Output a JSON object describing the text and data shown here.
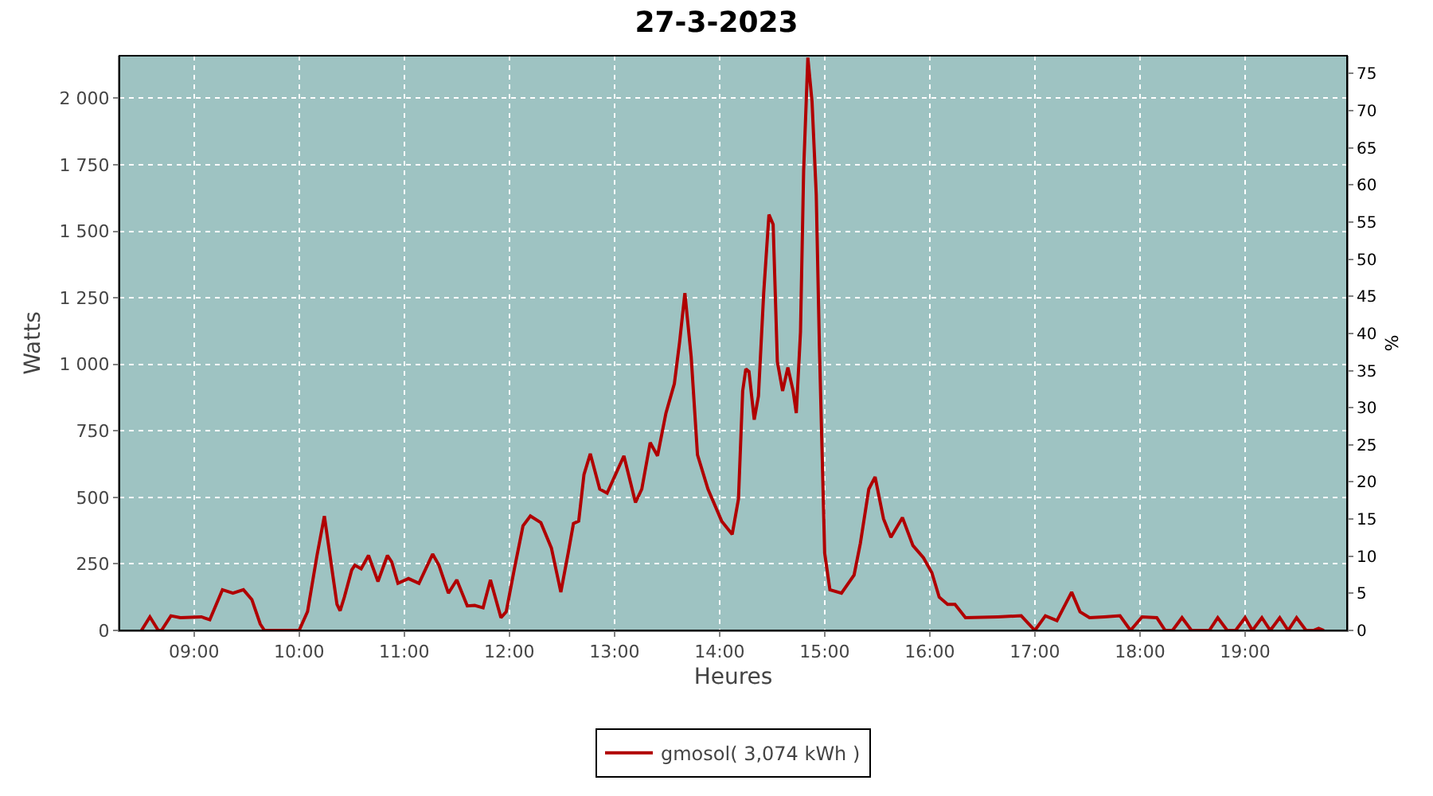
{
  "chart_data": {
    "type": "line",
    "title": "27-3-2023",
    "xlabel": "Heures",
    "ylabel": "Watts",
    "y2label": "%",
    "xlim": [
      8.29,
      19.97
    ],
    "xticks": [
      {
        "value": 9,
        "label": "09:00"
      },
      {
        "value": 10,
        "label": "10:00"
      },
      {
        "value": 11,
        "label": "11:00"
      },
      {
        "value": 12,
        "label": "12:00"
      },
      {
        "value": 13,
        "label": "13:00"
      },
      {
        "value": 14,
        "label": "14:00"
      },
      {
        "value": 15,
        "label": "15:00"
      },
      {
        "value": 16,
        "label": "16:00"
      },
      {
        "value": 17,
        "label": "17:00"
      },
      {
        "value": 18,
        "label": "18:00"
      },
      {
        "value": 19,
        "label": "19:00"
      }
    ],
    "ylim": [
      0,
      2160
    ],
    "yticks": [
      0,
      250,
      500,
      750,
      {
        "value": 1000,
        "label": "1 000"
      },
      {
        "value": 1250,
        "label": "1 250"
      },
      {
        "value": 1500,
        "label": "1 500"
      },
      {
        "value": 1750,
        "label": "1 750"
      },
      {
        "value": 2000,
        "label": "2 000"
      }
    ],
    "y2lim": [
      0,
      77.4
    ],
    "y2ticks": [
      0,
      5,
      10,
      15,
      20,
      25,
      30,
      35,
      40,
      45,
      50,
      55,
      60,
      65,
      70,
      75
    ],
    "grid": true,
    "legend": "bottom",
    "line_style": "solid",
    "series": [
      {
        "name": "gmosol( 3,074 kWh )",
        "color": "#b00000",
        "x": [
          8.5,
          8.58,
          8.66,
          8.69,
          8.78,
          8.87,
          9.07,
          9.15,
          9.27,
          9.37,
          9.47,
          9.55,
          9.63,
          9.67,
          9.93,
          10.0,
          10.08,
          10.17,
          10.24,
          10.31,
          10.36,
          10.39,
          10.43,
          10.5,
          10.53,
          10.59,
          10.66,
          10.75,
          10.84,
          10.88,
          10.94,
          11.04,
          11.14,
          11.27,
          11.33,
          11.42,
          11.5,
          11.6,
          11.67,
          11.75,
          11.82,
          11.92,
          11.97,
          12.05,
          12.13,
          12.2,
          12.3,
          12.4,
          12.49,
          12.56,
          12.61,
          12.66,
          12.71,
          12.77,
          12.86,
          12.93,
          13.01,
          13.09,
          13.2,
          13.26,
          13.34,
          13.41,
          13.49,
          13.57,
          13.62,
          13.67,
          13.73,
          13.79,
          13.89,
          14.02,
          14.12,
          14.18,
          14.22,
          14.25,
          14.28,
          14.33,
          14.37,
          14.42,
          14.47,
          14.51,
          14.55,
          14.6,
          14.65,
          14.7,
          14.73,
          14.77,
          14.8,
          14.84,
          14.88,
          14.92,
          14.95,
          15.0,
          15.05,
          15.16,
          15.28,
          15.34,
          15.42,
          15.48,
          15.56,
          15.63,
          15.74,
          15.84,
          15.94,
          16.02,
          16.09,
          16.17,
          16.24,
          16.34,
          16.65,
          16.87,
          17.0,
          17.1,
          17.21,
          17.35,
          17.43,
          17.52,
          17.66,
          17.81,
          17.91,
          18.02,
          18.16,
          18.24,
          18.31,
          18.4,
          18.49,
          18.66,
          18.74,
          18.83,
          18.91,
          19.0,
          19.07,
          19.16,
          19.24,
          19.33,
          19.41,
          19.49,
          19.58,
          19.65,
          19.7,
          19.75
        ],
        "values": [
          0,
          51,
          0,
          0,
          55,
          48,
          51,
          40,
          153,
          140,
          153,
          116,
          24,
          0,
          0,
          0,
          71,
          282,
          430,
          236,
          98,
          74,
          125,
          227,
          245,
          232,
          282,
          184,
          282,
          258,
          177,
          195,
          177,
          287,
          245,
          140,
          190,
          92,
          94,
          85,
          190,
          48,
          70,
          236,
          393,
          430,
          405,
          310,
          144,
          291,
          402,
          411,
          586,
          664,
          531,
          516,
          586,
          656,
          481,
          531,
          706,
          656,
          817,
          927,
          1084,
          1268,
          1029,
          660,
          531,
          411,
          361,
          494,
          900,
          983,
          973,
          792,
          881,
          1268,
          1563,
          1526,
          1010,
          900,
          988,
          900,
          817,
          1121,
          1729,
          2153,
          1987,
          1637,
          1066,
          291,
          153,
          140,
          208,
          328,
          531,
          577,
          420,
          350,
          424,
          319,
          273,
          217,
          125,
          98,
          98,
          48,
          51,
          55,
          0,
          55,
          37,
          144,
          70,
          48,
          51,
          55,
          0,
          51,
          48,
          0,
          0,
          48,
          0,
          0,
          48,
          0,
          0,
          48,
          0,
          48,
          0,
          48,
          0,
          48,
          0,
          0,
          8,
          0
        ]
      }
    ]
  }
}
